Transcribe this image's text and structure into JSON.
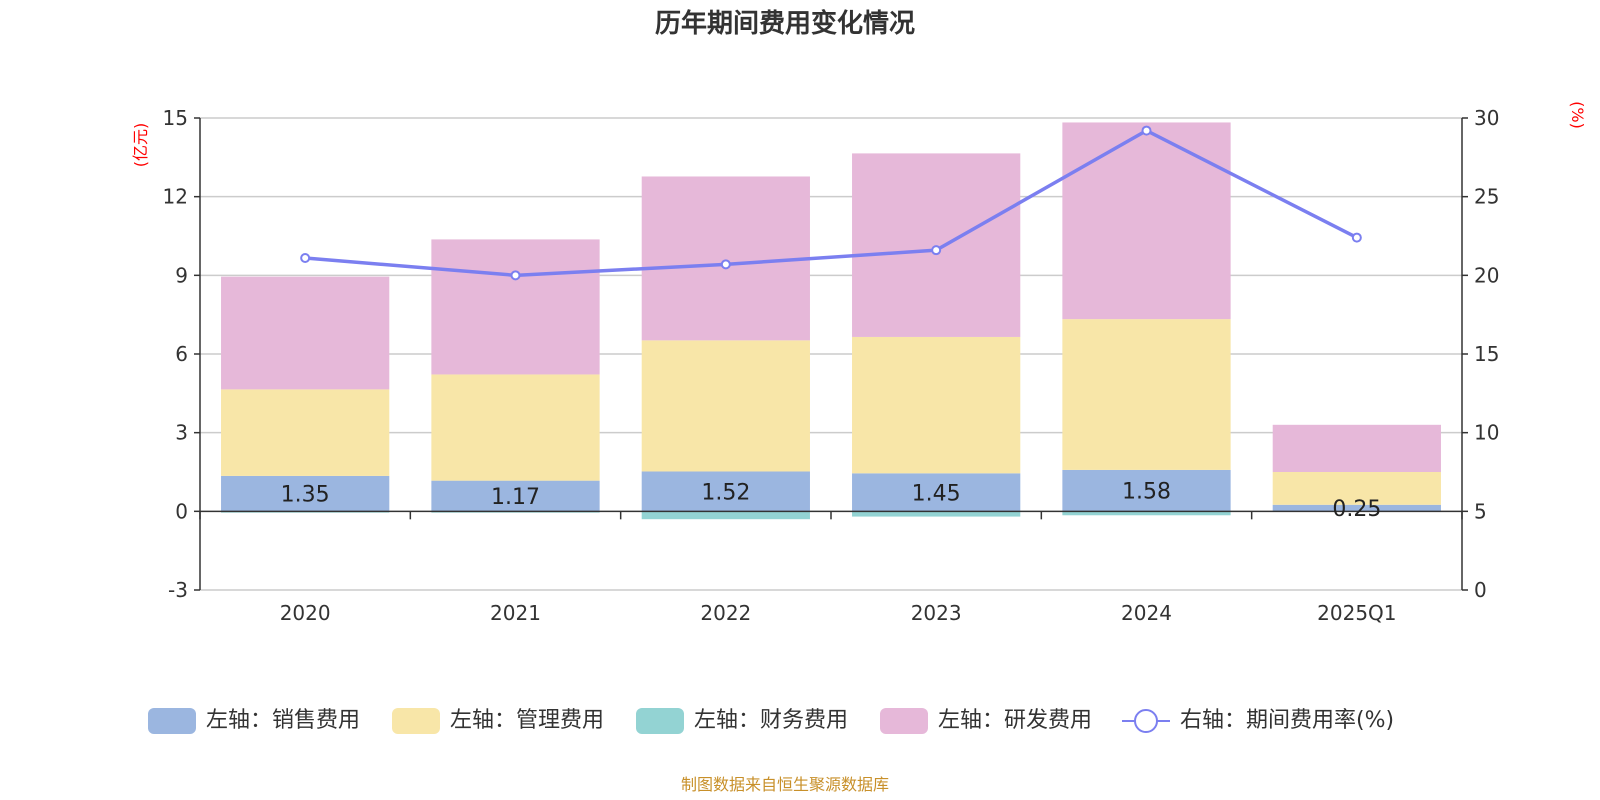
{
  "chart_data": {
    "type": "bar",
    "title": "历年期间费用变化情况",
    "categories": [
      "2020",
      "2021",
      "2022",
      "2023",
      "2024",
      "2025Q1"
    ],
    "left_axis": {
      "unit": "(亿元)",
      "ylim": [
        -3,
        15
      ],
      "ticks": [
        15,
        12,
        9,
        6,
        3,
        0,
        -3
      ]
    },
    "right_axis": {
      "unit": "(%)",
      "ylim": [
        0,
        30
      ],
      "ticks": [
        30,
        25,
        20,
        15,
        10,
        5,
        0
      ]
    },
    "series": [
      {
        "name": "左轴：销售费用",
        "kind": "stacked-bar",
        "color": "#9bb6e0",
        "values": [
          1.35,
          1.17,
          1.52,
          1.45,
          1.58,
          0.25
        ],
        "labels": [
          "1.35",
          "1.17",
          "1.52",
          "1.45",
          "1.58",
          "0.25"
        ]
      },
      {
        "name": "左轴：管理费用",
        "kind": "stacked-bar",
        "color": "#f8e6a8",
        "values": [
          3.3,
          4.05,
          5.0,
          5.2,
          5.75,
          1.25
        ]
      },
      {
        "name": "左轴：财务费用",
        "kind": "stacked-bar",
        "color": "#93d3d3",
        "values": [
          -0.05,
          -0.05,
          -0.3,
          -0.2,
          -0.15,
          -0.02
        ]
      },
      {
        "name": "左轴：研发费用",
        "kind": "stacked-bar",
        "color": "#e6b8d9",
        "values": [
          4.3,
          5.15,
          6.25,
          7.0,
          7.5,
          1.8
        ]
      },
      {
        "name": "右轴：期间费用率(%)",
        "kind": "line",
        "color": "#7b7ff0",
        "values": [
          21.1,
          20.0,
          20.7,
          21.6,
          29.2,
          22.4
        ]
      }
    ],
    "source": "制图数据来自恒生聚源数据库"
  }
}
